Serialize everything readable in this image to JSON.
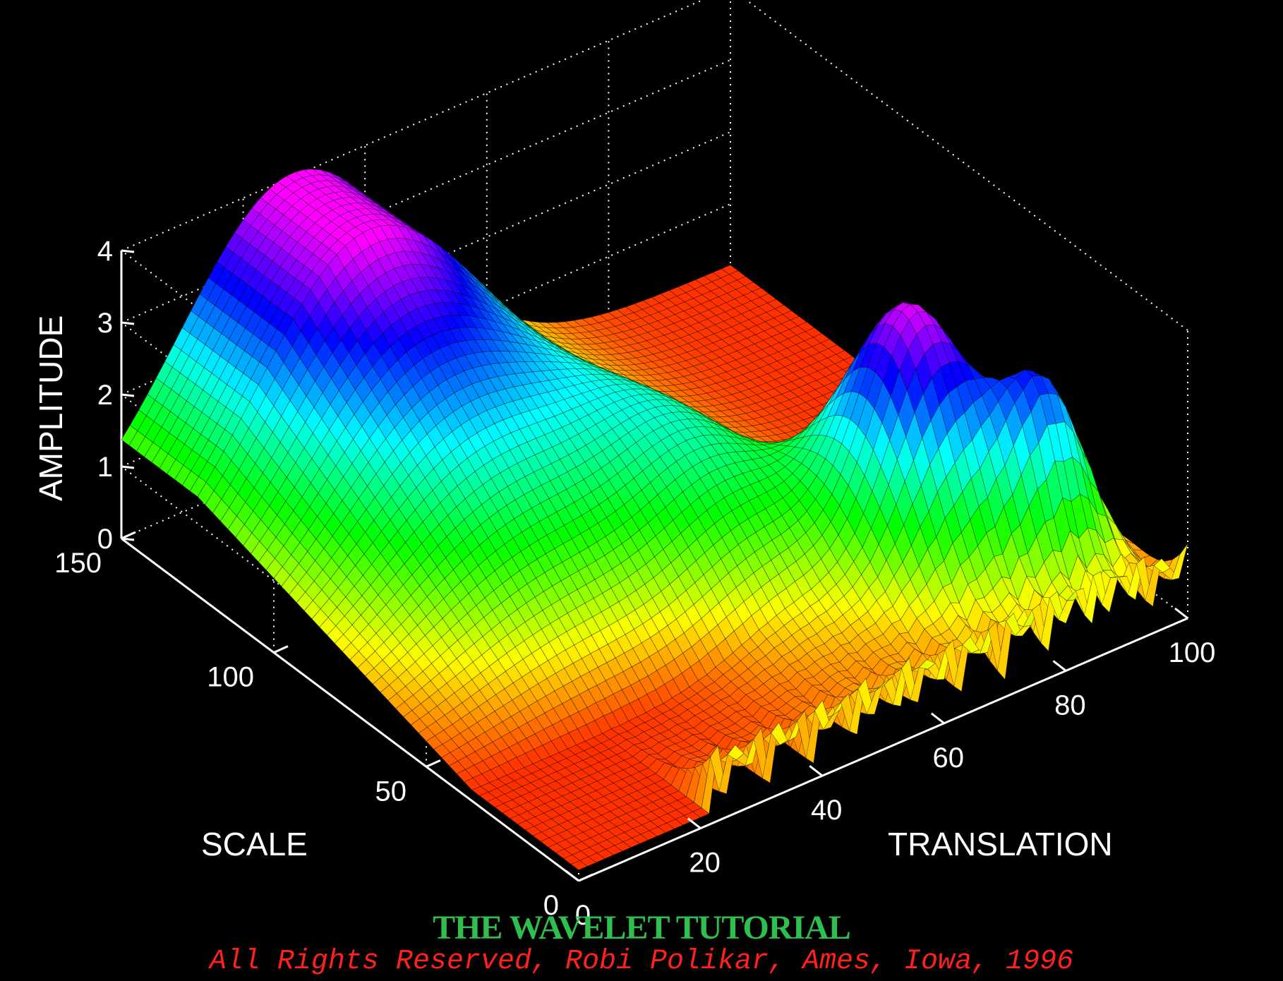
{
  "chart_data": {
    "type": "surface",
    "x_axis": {
      "label": "TRANSLATION",
      "range": [
        0,
        100
      ],
      "ticks": [
        0,
        20,
        40,
        60,
        80,
        100
      ]
    },
    "y_axis": {
      "label": "SCALE",
      "range": [
        0,
        150
      ],
      "ticks": [
        0,
        50,
        100,
        150
      ]
    },
    "z_axis": {
      "label": "AMPLITUDE",
      "range": [
        0,
        4
      ],
      "ticks": [
        0,
        1,
        2,
        3,
        4
      ]
    },
    "grid": true,
    "colormap": "hsv",
    "background": "#000000",
    "description_of_surface": {
      "peak_amplitude_approx": 3.6,
      "peak_location": {
        "translation": 75,
        "scale": 40
      },
      "ridge_high_scale": {
        "translation_range": [
          0,
          60
        ],
        "scale_range": [
          60,
          150
        ],
        "amplitude_max": 3.9
      },
      "small_scale_oscillations": {
        "translation_range": [
          25,
          100
        ],
        "scale_max": 15
      }
    }
  },
  "footer": {
    "title": "THE WAVELET TUTORIAL",
    "title_color": "#2fbf4f",
    "copyright": "All Rights Reserved, Robi Polikar, Ames, Iowa, 1996",
    "copyright_color": "#ff2020"
  }
}
